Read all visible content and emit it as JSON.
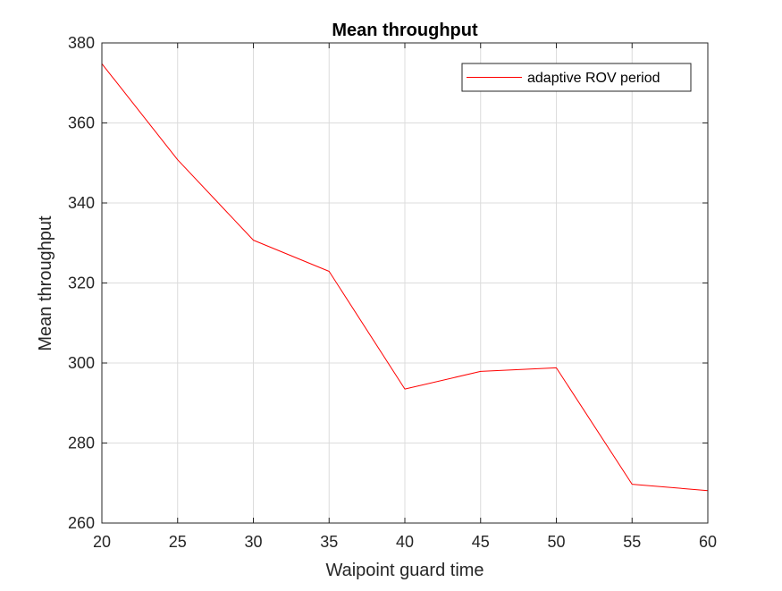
{
  "chart_data": {
    "type": "line",
    "title": "Mean throughput",
    "xlabel": "Waipoint guard time",
    "ylabel": "Mean throughput",
    "xlim": [
      20,
      60
    ],
    "ylim": [
      260,
      380
    ],
    "xticks": [
      20,
      25,
      30,
      35,
      40,
      45,
      50,
      55,
      60
    ],
    "yticks": [
      260,
      280,
      300,
      320,
      340,
      360,
      380
    ],
    "grid": true,
    "legend_position": "top-right",
    "series": [
      {
        "name": "adaptive ROV period",
        "color": "#ff0000",
        "x": [
          20,
          25,
          30,
          35,
          40,
          45,
          50,
          55,
          60
        ],
        "y": [
          374.8,
          350.8,
          330.7,
          322.9,
          293.5,
          297.9,
          298.8,
          269.7,
          268.1
        ]
      }
    ]
  }
}
